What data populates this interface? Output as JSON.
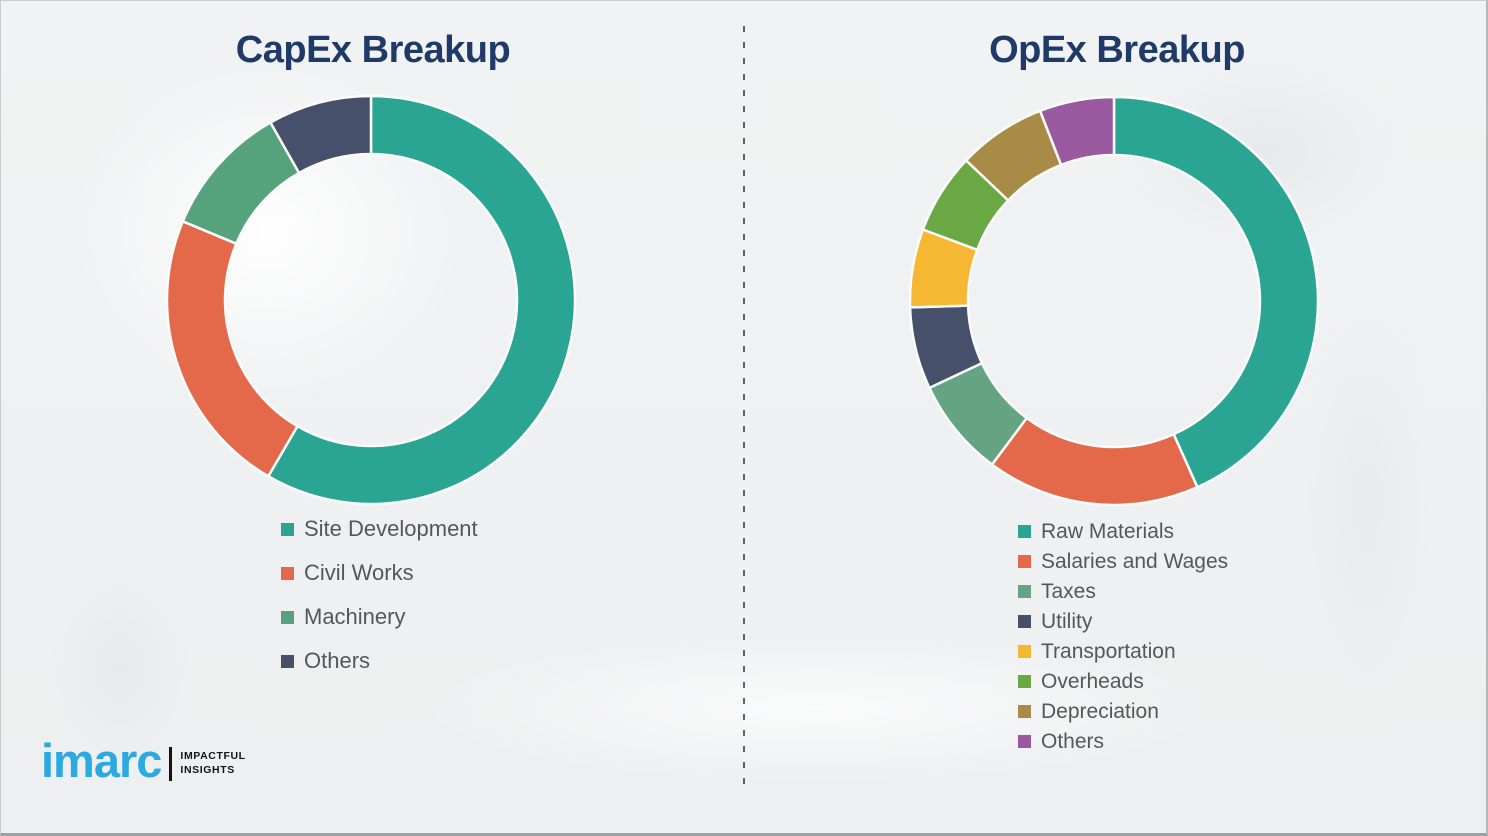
{
  "header": {
    "capex_title": "CapEx Breakup",
    "opex_title": "OpEx Breakup"
  },
  "chart_data": [
    {
      "id": "capex",
      "type": "pie",
      "subtype": "donut",
      "title": "CapEx Breakup",
      "categories": [
        "Site Development",
        "Civil Works",
        "Machinery",
        "Others"
      ],
      "values": [
        58.4,
        22.9,
        10.5,
        8.2
      ],
      "colors": [
        "#2aa493",
        "#e4694b",
        "#55a27c",
        "#47506a"
      ],
      "units": "percent-of-ring",
      "start_angle_deg": 0,
      "direction": "clockwise",
      "legend_position": "below-left",
      "data_labels": false
    },
    {
      "id": "opex",
      "type": "pie",
      "subtype": "donut",
      "title": "OpEx Breakup",
      "categories": [
        "Raw Materials",
        "Salaries and Wages",
        "Taxes",
        "Utility",
        "Transportation",
        "Overheads",
        "Depreciation",
        "Others"
      ],
      "values": [
        43.3,
        16.9,
        7.8,
        6.5,
        6.2,
        6.4,
        7.0,
        5.9
      ],
      "colors": [
        "#2aa493",
        "#e4694b",
        "#64a483",
        "#47506a",
        "#f6b832",
        "#69a843",
        "#a78b46",
        "#9a599f"
      ],
      "units": "percent-of-ring",
      "start_angle_deg": 0,
      "direction": "clockwise",
      "legend_position": "below-left",
      "data_labels": false
    }
  ],
  "logo": {
    "wordmark": "imarc",
    "tagline_line1": "IMPACTFUL",
    "tagline_line2": "INSIGHTS",
    "brand_color": "#2ba9e1"
  },
  "styles": {
    "title_color": "#1f3a68",
    "legend_text_color": "#575757",
    "divider_color": "#5e6166",
    "background_color": "#f1f2f3",
    "segment_gap_color": "#fafbfb"
  }
}
